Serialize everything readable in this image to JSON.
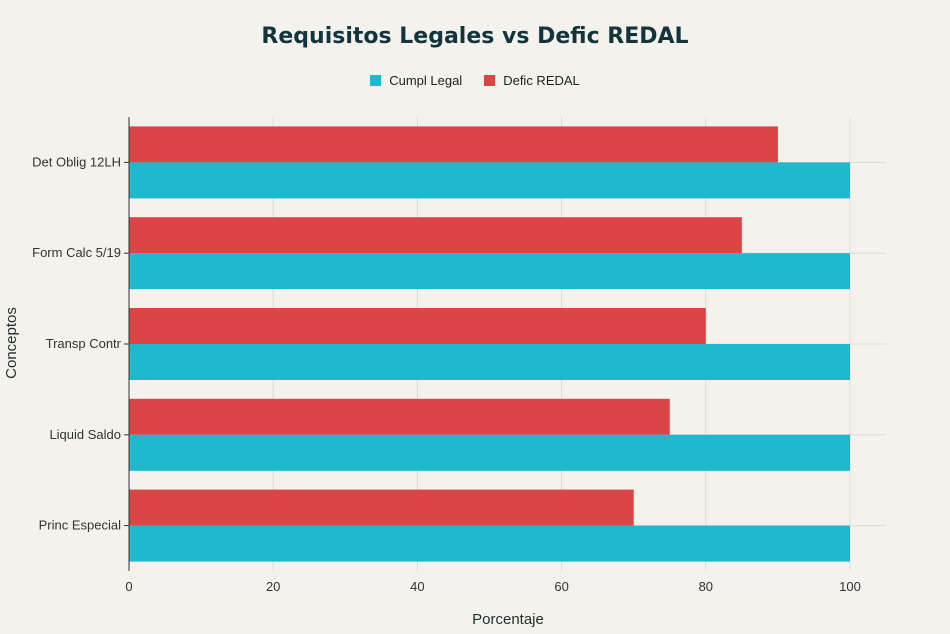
{
  "chart_data": {
    "type": "bar",
    "orientation": "horizontal",
    "title": "Requisitos Legales vs Defic REDAL",
    "xlabel": "Porcentaje",
    "ylabel": "Conceptos",
    "xlim": [
      0,
      100
    ],
    "x_ticks": [
      0,
      20,
      40,
      60,
      80,
      100
    ],
    "categories": [
      "Det Oblig 12LH",
      "Form Calc 5/19",
      "Transp Contr",
      "Liquid Saldo",
      "Princ Especial"
    ],
    "series": [
      {
        "name": "Cumpl Legal",
        "color": "#1fb8cd",
        "values": [
          100,
          100,
          100,
          100,
          100
        ]
      },
      {
        "name": "Defic REDAL",
        "color": "#db4545",
        "values": [
          90,
          85,
          80,
          75,
          70
        ]
      }
    ],
    "legend_position": "top-center",
    "grid": true
  }
}
